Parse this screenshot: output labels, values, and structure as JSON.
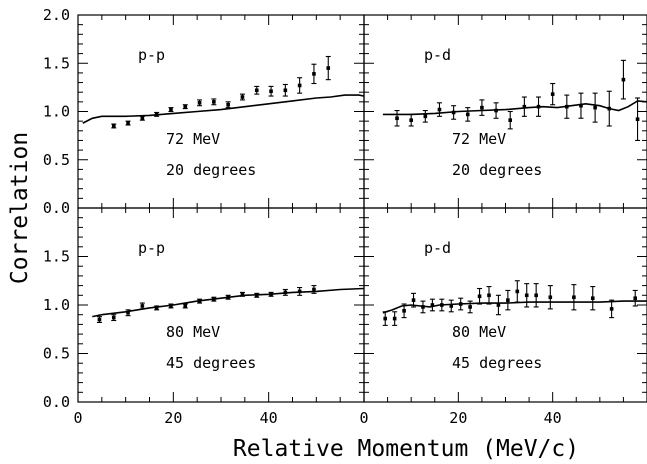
{
  "chart_data": {
    "type": "scatter",
    "ylabel": "Correlation",
    "xlabel": "Relative Momentum (MeV/c)",
    "xlim": [
      0,
      60
    ],
    "ylim": [
      0,
      2.0
    ],
    "x_ticks": [
      "0",
      "20",
      "40"
    ],
    "y_ticks": [
      "0.0",
      "0.5",
      "1.0",
      "1.5",
      "2.0"
    ],
    "grid": false,
    "panels": [
      {
        "label": "p-p",
        "energy": "72 MeV",
        "angle": "20 degrees",
        "points": [
          {
            "x": 7.5,
            "y": 0.85,
            "err": 0.02
          },
          {
            "x": 10.5,
            "y": 0.88,
            "err": 0.02
          },
          {
            "x": 13.5,
            "y": 0.93,
            "err": 0.02
          },
          {
            "x": 16.5,
            "y": 0.97,
            "err": 0.02
          },
          {
            "x": 19.5,
            "y": 1.02,
            "err": 0.02
          },
          {
            "x": 22.5,
            "y": 1.05,
            "err": 0.02
          },
          {
            "x": 25.5,
            "y": 1.09,
            "err": 0.03
          },
          {
            "x": 28.5,
            "y": 1.1,
            "err": 0.03
          },
          {
            "x": 31.5,
            "y": 1.07,
            "err": 0.03
          },
          {
            "x": 34.5,
            "y": 1.15,
            "err": 0.03
          },
          {
            "x": 37.5,
            "y": 1.22,
            "err": 0.04
          },
          {
            "x": 40.5,
            "y": 1.21,
            "err": 0.05
          },
          {
            "x": 43.5,
            "y": 1.22,
            "err": 0.06
          },
          {
            "x": 46.5,
            "y": 1.27,
            "err": 0.08
          },
          {
            "x": 49.5,
            "y": 1.39,
            "err": 0.1
          },
          {
            "x": 52.5,
            "y": 1.45,
            "err": 0.12
          }
        ],
        "curve": [
          [
            1,
            0.88
          ],
          [
            3,
            0.93
          ],
          [
            5,
            0.95
          ],
          [
            10,
            0.95
          ],
          [
            15,
            0.96
          ],
          [
            20,
            0.98
          ],
          [
            25,
            1.0
          ],
          [
            30,
            1.02
          ],
          [
            35,
            1.05
          ],
          [
            40,
            1.08
          ],
          [
            45,
            1.11
          ],
          [
            50,
            1.14
          ],
          [
            53,
            1.15
          ],
          [
            56,
            1.17
          ],
          [
            59,
            1.17
          ],
          [
            60,
            1.16
          ]
        ]
      },
      {
        "label": "p-d",
        "energy": "72 MeV",
        "angle": "20 degrees",
        "points": [
          {
            "x": 7,
            "y": 0.93,
            "err": 0.08
          },
          {
            "x": 10,
            "y": 0.91,
            "err": 0.06
          },
          {
            "x": 13,
            "y": 0.95,
            "err": 0.06
          },
          {
            "x": 16,
            "y": 1.02,
            "err": 0.07
          },
          {
            "x": 19,
            "y": 0.99,
            "err": 0.07
          },
          {
            "x": 22,
            "y": 0.97,
            "err": 0.07
          },
          {
            "x": 25,
            "y": 1.04,
            "err": 0.08
          },
          {
            "x": 28,
            "y": 1.01,
            "err": 0.08
          },
          {
            "x": 31,
            "y": 0.91,
            "err": 0.09
          },
          {
            "x": 34,
            "y": 1.05,
            "err": 0.1
          },
          {
            "x": 37,
            "y": 1.05,
            "err": 0.1
          },
          {
            "x": 40,
            "y": 1.18,
            "err": 0.11
          },
          {
            "x": 43,
            "y": 1.05,
            "err": 0.12
          },
          {
            "x": 46,
            "y": 1.06,
            "err": 0.13
          },
          {
            "x": 49,
            "y": 1.04,
            "err": 0.15
          },
          {
            "x": 52,
            "y": 1.03,
            "err": 0.18
          },
          {
            "x": 55,
            "y": 1.33,
            "err": 0.2
          },
          {
            "x": 58,
            "y": 0.92,
            "err": 0.22
          }
        ],
        "curve": [
          [
            4,
            0.97
          ],
          [
            10,
            0.97
          ],
          [
            15,
            0.98
          ],
          [
            20,
            1.0
          ],
          [
            25,
            1.01
          ],
          [
            30,
            1.02
          ],
          [
            35,
            1.04
          ],
          [
            38,
            1.05
          ],
          [
            41,
            1.04
          ],
          [
            44,
            1.06
          ],
          [
            47,
            1.08
          ],
          [
            50,
            1.06
          ],
          [
            52,
            1.03
          ],
          [
            54,
            1.01
          ],
          [
            56,
            1.05
          ],
          [
            58,
            1.11
          ],
          [
            60,
            1.1
          ]
        ]
      },
      {
        "label": "p-p",
        "energy": "80 MeV",
        "angle": "45 degrees",
        "points": [
          {
            "x": 4.5,
            "y": 0.85,
            "err": 0.03
          },
          {
            "x": 7.5,
            "y": 0.87,
            "err": 0.03
          },
          {
            "x": 10.5,
            "y": 0.92,
            "err": 0.03
          },
          {
            "x": 13.5,
            "y": 0.99,
            "err": 0.03
          },
          {
            "x": 16.5,
            "y": 0.97,
            "err": 0.02
          },
          {
            "x": 19.5,
            "y": 0.99,
            "err": 0.02
          },
          {
            "x": 22.5,
            "y": 0.99,
            "err": 0.02
          },
          {
            "x": 25.5,
            "y": 1.04,
            "err": 0.02
          },
          {
            "x": 28.5,
            "y": 1.06,
            "err": 0.02
          },
          {
            "x": 31.5,
            "y": 1.08,
            "err": 0.02
          },
          {
            "x": 34.5,
            "y": 1.11,
            "err": 0.02
          },
          {
            "x": 37.5,
            "y": 1.1,
            "err": 0.02
          },
          {
            "x": 40.5,
            "y": 1.11,
            "err": 0.02
          },
          {
            "x": 43.5,
            "y": 1.13,
            "err": 0.03
          },
          {
            "x": 46.5,
            "y": 1.14,
            "err": 0.04
          },
          {
            "x": 49.5,
            "y": 1.16,
            "err": 0.04
          }
        ],
        "curve": [
          [
            3,
            0.88
          ],
          [
            5,
            0.9
          ],
          [
            10,
            0.93
          ],
          [
            15,
            0.97
          ],
          [
            20,
            1.0
          ],
          [
            25,
            1.04
          ],
          [
            30,
            1.07
          ],
          [
            35,
            1.1
          ],
          [
            40,
            1.11
          ],
          [
            45,
            1.13
          ],
          [
            50,
            1.14
          ],
          [
            55,
            1.16
          ],
          [
            60,
            1.17
          ]
        ]
      },
      {
        "label": "p-d",
        "energy": "80 MeV",
        "angle": "45 degrees",
        "points": [
          {
            "x": 4.5,
            "y": 0.86,
            "err": 0.07
          },
          {
            "x": 6.5,
            "y": 0.86,
            "err": 0.07
          },
          {
            "x": 8.5,
            "y": 0.94,
            "err": 0.07
          },
          {
            "x": 10.5,
            "y": 1.05,
            "err": 0.07
          },
          {
            "x": 12.5,
            "y": 0.98,
            "err": 0.06
          },
          {
            "x": 14.5,
            "y": 1.0,
            "err": 0.06
          },
          {
            "x": 16.5,
            "y": 1.0,
            "err": 0.06
          },
          {
            "x": 18.5,
            "y": 0.99,
            "err": 0.06
          },
          {
            "x": 20.5,
            "y": 1.01,
            "err": 0.06
          },
          {
            "x": 22.5,
            "y": 0.98,
            "err": 0.06
          },
          {
            "x": 24.5,
            "y": 1.09,
            "err": 0.08
          },
          {
            "x": 26.5,
            "y": 1.1,
            "err": 0.09
          },
          {
            "x": 28.5,
            "y": 1.0,
            "err": 0.1
          },
          {
            "x": 30.5,
            "y": 1.05,
            "err": 0.1
          },
          {
            "x": 32.5,
            "y": 1.14,
            "err": 0.11
          },
          {
            "x": 34.5,
            "y": 1.1,
            "err": 0.12
          },
          {
            "x": 36.5,
            "y": 1.1,
            "err": 0.12
          },
          {
            "x": 39.5,
            "y": 1.08,
            "err": 0.12
          },
          {
            "x": 44.5,
            "y": 1.08,
            "err": 0.13
          },
          {
            "x": 48.5,
            "y": 1.07,
            "err": 0.12
          },
          {
            "x": 52.5,
            "y": 0.96,
            "err": 0.09
          },
          {
            "x": 57.5,
            "y": 1.07,
            "err": 0.08
          }
        ],
        "curve": [
          [
            4,
            0.92
          ],
          [
            6,
            0.95
          ],
          [
            8,
            0.99
          ],
          [
            10,
            1.0
          ],
          [
            12,
            0.99
          ],
          [
            14,
            0.98
          ],
          [
            16,
            1.0
          ],
          [
            20,
            1.01
          ],
          [
            25,
            1.02
          ],
          [
            30,
            1.02
          ],
          [
            35,
            1.03
          ],
          [
            40,
            1.03
          ],
          [
            45,
            1.03
          ],
          [
            50,
            1.03
          ],
          [
            55,
            1.04
          ],
          [
            60,
            1.04
          ]
        ]
      }
    ]
  }
}
